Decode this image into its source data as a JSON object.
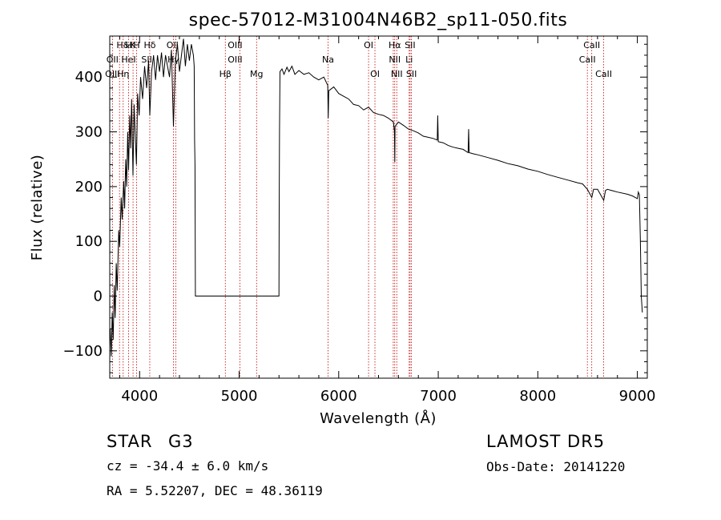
{
  "chart_data": {
    "type": "line",
    "title": "spec-57012-M31004N46B2_sp11-050.fits",
    "xlabel": "Wavelength (Å)",
    "ylabel": "Flux (relative)",
    "xlim": [
      3700,
      9100
    ],
    "ylim": [
      -150,
      475
    ],
    "xticks": [
      4000,
      5000,
      6000,
      7000,
      8000,
      9000
    ],
    "yticks": [
      -100,
      0,
      100,
      200,
      300,
      400
    ],
    "grid": false,
    "colors": {
      "spectrum": "#000000",
      "lines": "#c00000",
      "axes": "#000000"
    },
    "series": [
      {
        "points": [
          [
            3705,
            -60
          ],
          [
            3715,
            -110
          ],
          [
            3725,
            -30
          ],
          [
            3735,
            -80
          ],
          [
            3745,
            20
          ],
          [
            3755,
            -40
          ],
          [
            3765,
            60
          ],
          [
            3775,
            10
          ],
          [
            3790,
            120
          ],
          [
            3800,
            90
          ],
          [
            3815,
            180
          ],
          [
            3825,
            140
          ],
          [
            3840,
            210
          ],
          [
            3850,
            160
          ],
          [
            3860,
            250
          ],
          [
            3870,
            200
          ],
          [
            3880,
            300
          ],
          [
            3889,
            230
          ],
          [
            3900,
            330
          ],
          [
            3910,
            270
          ],
          [
            3920,
            360
          ],
          [
            3933,
            220
          ],
          [
            3945,
            350
          ],
          [
            3955,
            300
          ],
          [
            3968,
            240
          ],
          [
            3980,
            370
          ],
          [
            3995,
            330
          ],
          [
            4010,
            400
          ],
          [
            4030,
            360
          ],
          [
            4050,
            420
          ],
          [
            4070,
            380
          ],
          [
            4090,
            430
          ],
          [
            4102,
            330
          ],
          [
            4120,
            410
          ],
          [
            4140,
            440
          ],
          [
            4160,
            395
          ],
          [
            4180,
            440
          ],
          [
            4200,
            410
          ],
          [
            4220,
            445
          ],
          [
            4240,
            400
          ],
          [
            4260,
            440
          ],
          [
            4280,
            420
          ],
          [
            4300,
            400
          ],
          [
            4320,
            450
          ],
          [
            4340,
            310
          ],
          [
            4360,
            430
          ],
          [
            4380,
            460
          ],
          [
            4400,
            410
          ],
          [
            4420,
            440
          ],
          [
            4440,
            470
          ],
          [
            4460,
            420
          ],
          [
            4480,
            460
          ],
          [
            4500,
            430
          ],
          [
            4520,
            460
          ],
          [
            4540,
            440
          ],
          [
            4548,
            420
          ],
          [
            4552,
            285
          ],
          [
            4556,
            240
          ],
          [
            4560,
            0
          ],
          [
            5400,
            0
          ],
          [
            5402,
            160
          ],
          [
            5405,
            300
          ],
          [
            5410,
            410
          ],
          [
            5430,
            415
          ],
          [
            5450,
            405
          ],
          [
            5480,
            418
          ],
          [
            5500,
            410
          ],
          [
            5530,
            420
          ],
          [
            5560,
            405
          ],
          [
            5600,
            412
          ],
          [
            5650,
            405
          ],
          [
            5700,
            408
          ],
          [
            5750,
            400
          ],
          [
            5800,
            395
          ],
          [
            5850,
            400
          ],
          [
            5890,
            385
          ],
          [
            5895,
            325
          ],
          [
            5900,
            375
          ],
          [
            5950,
            382
          ],
          [
            6000,
            370
          ],
          [
            6050,
            365
          ],
          [
            6100,
            360
          ],
          [
            6150,
            350
          ],
          [
            6200,
            348
          ],
          [
            6250,
            340
          ],
          [
            6300,
            345
          ],
          [
            6350,
            335
          ],
          [
            6400,
            332
          ],
          [
            6450,
            330
          ],
          [
            6500,
            325
          ],
          [
            6550,
            318
          ],
          [
            6560,
            300
          ],
          [
            6563,
            245
          ],
          [
            6566,
            310
          ],
          [
            6600,
            318
          ],
          [
            6650,
            312
          ],
          [
            6700,
            305
          ],
          [
            6750,
            302
          ],
          [
            6800,
            298
          ],
          [
            6850,
            292
          ],
          [
            6900,
            290
          ],
          [
            6950,
            288
          ],
          [
            6990,
            285
          ],
          [
            6995,
            330
          ],
          [
            7000,
            282
          ],
          [
            7050,
            280
          ],
          [
            7100,
            275
          ],
          [
            7150,
            272
          ],
          [
            7200,
            270
          ],
          [
            7250,
            268
          ],
          [
            7300,
            262
          ],
          [
            7305,
            305
          ],
          [
            7310,
            262
          ],
          [
            7350,
            260
          ],
          [
            7400,
            258
          ],
          [
            7500,
            253
          ],
          [
            7600,
            248
          ],
          [
            7700,
            242
          ],
          [
            7800,
            238
          ],
          [
            7900,
            232
          ],
          [
            8000,
            228
          ],
          [
            8100,
            222
          ],
          [
            8200,
            217
          ],
          [
            8300,
            212
          ],
          [
            8400,
            207
          ],
          [
            8450,
            205
          ],
          [
            8498,
            195
          ],
          [
            8542,
            180
          ],
          [
            8560,
            195
          ],
          [
            8600,
            195
          ],
          [
            8662,
            175
          ],
          [
            8680,
            193
          ],
          [
            8700,
            195
          ],
          [
            8800,
            190
          ],
          [
            8900,
            186
          ],
          [
            8950,
            183
          ],
          [
            9000,
            178
          ],
          [
            9010,
            190
          ],
          [
            9020,
            185
          ],
          [
            9030,
            105
          ],
          [
            9040,
            0
          ],
          [
            9050,
            -30
          ]
        ]
      }
    ],
    "emission_lines": [
      {
        "label": "H&",
        "wavelength": 3835,
        "row": 0
      },
      {
        "label": "H",
        "wavelength": 3889,
        "row": 0
      },
      {
        "label": "K",
        "wavelength": 3934,
        "row": 0
      },
      {
        "label": "H",
        "wavelength": 3970,
        "row": 0
      },
      {
        "label": "Hδ",
        "wavelength": 4102,
        "row": 0
      },
      {
        "label": "OII",
        "wavelength": 4330,
        "row": 0
      },
      {
        "label": "OIII",
        "wavelength": 4959,
        "row": 0
      },
      {
        "label": "OI",
        "wavelength": 6300,
        "row": 0
      },
      {
        "label": "Hα",
        "wavelength": 6563,
        "row": 0
      },
      {
        "label": "SII",
        "wavelength": 6717,
        "row": 0
      },
      {
        "label": "CaII",
        "wavelength": 8542,
        "row": 0
      },
      {
        "label": "OII",
        "wavelength": 3727,
        "row": 1
      },
      {
        "label": "HeI",
        "wavelength": 3889,
        "row": 1
      },
      {
        "label": "SII",
        "wavelength": 4071,
        "row": 1
      },
      {
        "label": "Hγ",
        "wavelength": 4340,
        "row": 1
      },
      {
        "label": "OIII",
        "wavelength": 4959,
        "row": 1
      },
      {
        "label": "Na",
        "wavelength": 5893,
        "row": 1
      },
      {
        "label": "NII",
        "wavelength": 6563,
        "row": 1
      },
      {
        "label": "Li",
        "wavelength": 6708,
        "row": 1
      },
      {
        "label": "CaII",
        "wavelength": 8498,
        "row": 1
      },
      {
        "label": "OIII",
        "wavelength": 3727,
        "row": 2
      },
      {
        "label": "Hη",
        "wavelength": 3835,
        "row": 2
      },
      {
        "label": "Hβ",
        "wavelength": 4861,
        "row": 2
      },
      {
        "label": "Mg",
        "wavelength": 5175,
        "row": 2
      },
      {
        "label": "OI",
        "wavelength": 6364,
        "row": 2
      },
      {
        "label": "NII",
        "wavelength": 6583,
        "row": 2
      },
      {
        "label": "SII",
        "wavelength": 6731,
        "row": 2
      },
      {
        "label": "CaII",
        "wavelength": 8662,
        "row": 2
      }
    ],
    "line_markers": [
      3727,
      3798,
      3835,
      3889,
      3934,
      3970,
      4102,
      4340,
      4363,
      4861,
      5007,
      5175,
      5893,
      6300,
      6364,
      6548,
      6563,
      6583,
      6708,
      6717,
      6731,
      8498,
      8542,
      8662
    ]
  },
  "info": {
    "type": "STAR",
    "subclass": "G3",
    "survey": "LAMOST DR5",
    "cz_label": "cz = -34.4 ± 6.0 km/s",
    "obs_date": "Obs-Date: 20141220",
    "coords": "RA =   5.52207, DEC =  48.36119"
  }
}
